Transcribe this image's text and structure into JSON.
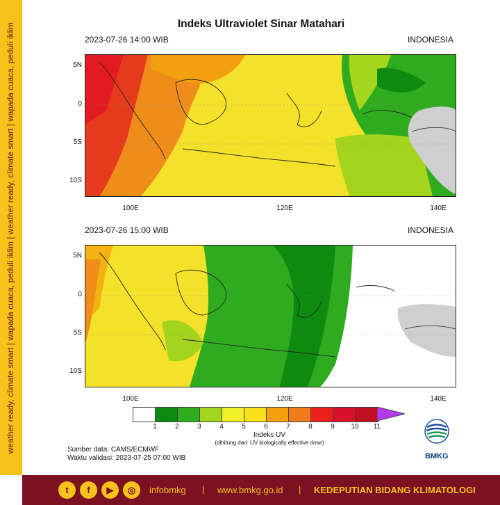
{
  "sidebar": {
    "text": "weather ready, climate smart | wapada cuaca, peduli iklim | weather ready, climate smart | wapada cuaca, peduli iklim"
  },
  "title": "Indeks Ultraviolet Sinar Matahari",
  "panels": [
    {
      "datetime": "2023-07-26  14:00 WIB",
      "region": "INDONESIA"
    },
    {
      "datetime": "2023-07-26  15:00 WIB",
      "region": "INDONESIA"
    }
  ],
  "axes": {
    "lat_ticks": [
      "5N",
      "0",
      "5S",
      "10S"
    ],
    "lon_ticks": [
      "100E",
      "120E",
      "140E"
    ]
  },
  "colorbar": {
    "label": "Indeks UV",
    "sublabel": "(dihitung dari: UV biologically effective dose)",
    "ticks": [
      "1",
      "2",
      "3",
      "4",
      "5",
      "6",
      "7",
      "8",
      "9",
      "10",
      "11"
    ],
    "colors": [
      "#ffffff",
      "#0d8a10",
      "#2fab1f",
      "#a3d51e",
      "#f2f029",
      "#f7e11a",
      "#f39f0e",
      "#ee7c18",
      "#ec1f1c",
      "#d8102a",
      "#c11022"
    ],
    "overflow_color": "#b33cf0"
  },
  "source": {
    "data": "Sumber data: CAMS/ECMWF",
    "validation": "Waktu validasi: 2023-07-25 07:00 WIB"
  },
  "logo": {
    "text": "BMKG",
    "icon": "bmkg-logo-icon"
  },
  "footer": {
    "handle": "infobmkg",
    "website": "www.bmkg.go.id",
    "division": "KEDEPUTIAN BIDANG KLIMATOLOGI",
    "icons": [
      "twitter-icon",
      "facebook-icon",
      "youtube-icon",
      "instagram-icon"
    ]
  }
}
